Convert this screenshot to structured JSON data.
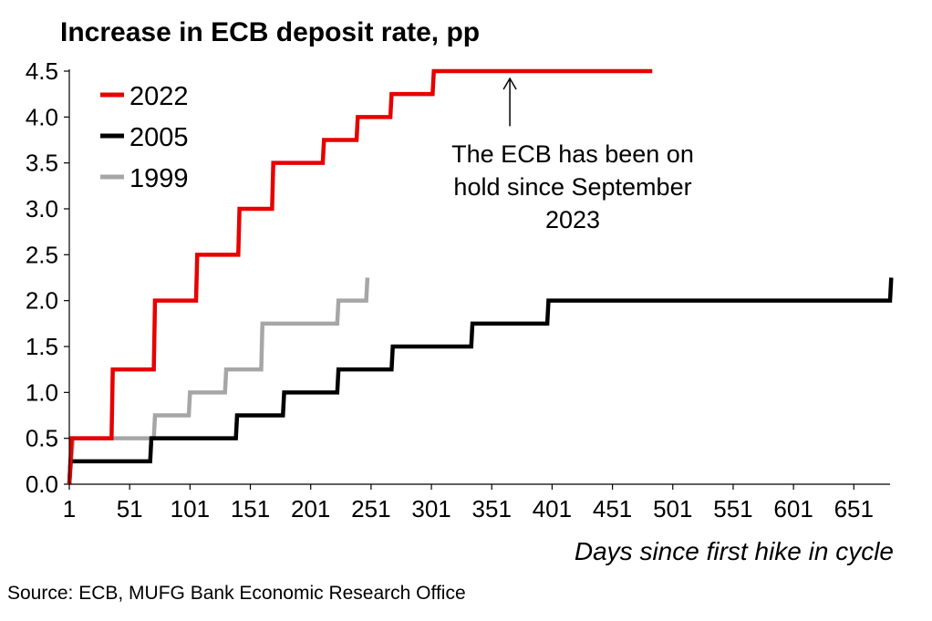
{
  "chart_data": {
    "type": "line",
    "step": true,
    "title": "Increase in ECB deposit rate, pp",
    "xlabel": "Days since first hike in cycle",
    "ylabel": "",
    "xlim": [
      1,
      681
    ],
    "ylim": [
      0,
      4.5
    ],
    "x_ticks": [
      1,
      51,
      101,
      151,
      201,
      251,
      301,
      351,
      401,
      451,
      501,
      551,
      601,
      651
    ],
    "y_ticks": [
      "0.0",
      "0.5",
      "1.0",
      "1.5",
      "2.0",
      "2.5",
      "3.0",
      "3.5",
      "4.0",
      "4.5"
    ],
    "grid": false,
    "legend_position": "top-left",
    "series": [
      {
        "name": "2022",
        "color": "#e60000",
        "points": [
          [
            1,
            0
          ],
          [
            3,
            0.5
          ],
          [
            36,
            0.5
          ],
          [
            37,
            1.25
          ],
          [
            71,
            1.25
          ],
          [
            72,
            2.0
          ],
          [
            106,
            2.0
          ],
          [
            107,
            2.5
          ],
          [
            141,
            2.5
          ],
          [
            142,
            3.0
          ],
          [
            169,
            3.0
          ],
          [
            170,
            3.5
          ],
          [
            211,
            3.5
          ],
          [
            212,
            3.75
          ],
          [
            239,
            3.75
          ],
          [
            240,
            4.0
          ],
          [
            267,
            4.0
          ],
          [
            268,
            4.25
          ],
          [
            302,
            4.25
          ],
          [
            303,
            4.5
          ],
          [
            484,
            4.5
          ]
        ]
      },
      {
        "name": "2005",
        "color": "#000000",
        "points": [
          [
            1,
            0
          ],
          [
            2,
            0.25
          ],
          [
            68,
            0.25
          ],
          [
            69,
            0.5
          ],
          [
            139,
            0.5
          ],
          [
            140,
            0.75
          ],
          [
            178,
            0.75
          ],
          [
            179,
            1.0
          ],
          [
            223,
            1.0
          ],
          [
            224,
            1.25
          ],
          [
            268,
            1.25
          ],
          [
            269,
            1.5
          ],
          [
            334,
            1.5
          ],
          [
            335,
            1.75
          ],
          [
            397,
            1.75
          ],
          [
            398,
            2.0
          ],
          [
            681,
            2.0
          ],
          [
            682,
            2.25
          ]
        ]
      },
      {
        "name": "1999",
        "color": "#a6a6a6",
        "points": [
          [
            1,
            0
          ],
          [
            4,
            0.5
          ],
          [
            71,
            0.5
          ],
          [
            72,
            0.75
          ],
          [
            100,
            0.75
          ],
          [
            101,
            1.0
          ],
          [
            130,
            1.0
          ],
          [
            131,
            1.25
          ],
          [
            160,
            1.25
          ],
          [
            161,
            1.75
          ],
          [
            223,
            1.75
          ],
          [
            224,
            2.0
          ],
          [
            247,
            2.0
          ],
          [
            248,
            2.25
          ]
        ]
      }
    ],
    "annotation": {
      "lines": [
        "The ECB has been on",
        "hold since September",
        "2023"
      ],
      "arrow_x": 366,
      "arrow_from_y": 3.9,
      "arrow_to_y": 4.42
    }
  },
  "source": "Source: ECB, MUFG Bank Economic Research Office"
}
